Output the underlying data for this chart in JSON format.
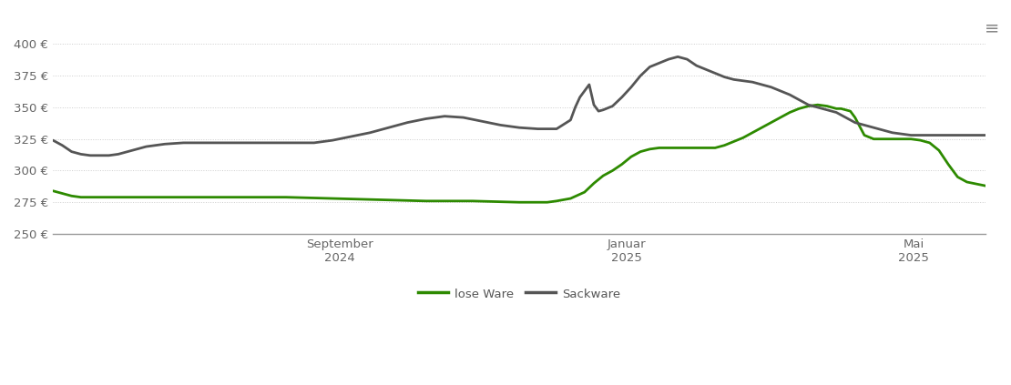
{
  "background_color": "#ffffff",
  "grid_color": "#cccccc",
  "ylim": [
    250,
    410
  ],
  "yticks": [
    250,
    275,
    300,
    325,
    350,
    375,
    400
  ],
  "ytick_labels": [
    "250 €",
    "275 €",
    "300 €",
    "325 €",
    "350 €",
    "375 €",
    "400 €"
  ],
  "xtick_labels": [
    "September\n2024",
    "Januar\n2025",
    "Mai\n2025"
  ],
  "line_green_color": "#2d8a00",
  "line_gray_color": "#555555",
  "legend_labels": [
    "lose Ware",
    "Sackware"
  ],
  "green_x": [
    0.0,
    0.01,
    0.02,
    0.03,
    0.04,
    0.05,
    0.06,
    0.07,
    0.08,
    0.1,
    0.12,
    0.14,
    0.16,
    0.18,
    0.2,
    0.25,
    0.3,
    0.35,
    0.4,
    0.45,
    0.5,
    0.53,
    0.54,
    0.555,
    0.57,
    0.58,
    0.59,
    0.6,
    0.61,
    0.62,
    0.63,
    0.64,
    0.65,
    0.66,
    0.67,
    0.68,
    0.69,
    0.7,
    0.71,
    0.72,
    0.73,
    0.74,
    0.75,
    0.76,
    0.77,
    0.78,
    0.79,
    0.8,
    0.81,
    0.82,
    0.83,
    0.84,
    0.845,
    0.85,
    0.855,
    0.86,
    0.87,
    0.88,
    0.89,
    0.9,
    0.91,
    0.92,
    0.93,
    0.94,
    0.95,
    0.96,
    0.97,
    0.98,
    1.0
  ],
  "green_y": [
    284,
    282,
    280,
    279,
    279,
    279,
    279,
    279,
    279,
    279,
    279,
    279,
    279,
    279,
    279,
    279,
    278,
    277,
    276,
    276,
    275,
    275,
    276,
    278,
    283,
    290,
    296,
    300,
    305,
    311,
    315,
    317,
    318,
    318,
    318,
    318,
    318,
    318,
    318,
    320,
    323,
    326,
    330,
    334,
    338,
    342,
    346,
    349,
    351,
    352,
    351,
    349,
    349,
    348,
    347,
    342,
    328,
    325,
    325,
    325,
    325,
    325,
    324,
    322,
    316,
    305,
    295,
    291,
    288
  ],
  "gray_x": [
    0.0,
    0.01,
    0.02,
    0.03,
    0.04,
    0.05,
    0.06,
    0.07,
    0.08,
    0.09,
    0.1,
    0.12,
    0.14,
    0.16,
    0.18,
    0.2,
    0.22,
    0.25,
    0.28,
    0.3,
    0.32,
    0.34,
    0.36,
    0.38,
    0.4,
    0.42,
    0.44,
    0.46,
    0.48,
    0.5,
    0.52,
    0.54,
    0.555,
    0.56,
    0.565,
    0.57,
    0.575,
    0.58,
    0.585,
    0.59,
    0.6,
    0.61,
    0.62,
    0.63,
    0.64,
    0.65,
    0.66,
    0.67,
    0.68,
    0.69,
    0.7,
    0.71,
    0.72,
    0.73,
    0.74,
    0.75,
    0.76,
    0.77,
    0.78,
    0.79,
    0.8,
    0.81,
    0.82,
    0.83,
    0.84,
    0.845,
    0.85,
    0.855,
    0.86,
    0.87,
    0.88,
    0.89,
    0.9,
    0.91,
    0.92,
    0.93,
    0.94,
    0.95,
    0.96,
    0.97,
    0.98,
    1.0
  ],
  "gray_y": [
    324,
    320,
    315,
    313,
    312,
    312,
    312,
    313,
    315,
    317,
    319,
    321,
    322,
    322,
    322,
    322,
    322,
    322,
    322,
    324,
    327,
    330,
    334,
    338,
    341,
    343,
    342,
    339,
    336,
    334,
    333,
    333,
    340,
    350,
    358,
    363,
    368,
    352,
    347,
    348,
    351,
    358,
    366,
    375,
    382,
    385,
    388,
    390,
    388,
    383,
    380,
    377,
    374,
    372,
    371,
    370,
    368,
    366,
    363,
    360,
    356,
    352,
    350,
    348,
    346,
    344,
    342,
    340,
    338,
    336,
    334,
    332,
    330,
    329,
    328,
    328,
    328,
    328,
    328,
    328,
    328,
    328
  ]
}
